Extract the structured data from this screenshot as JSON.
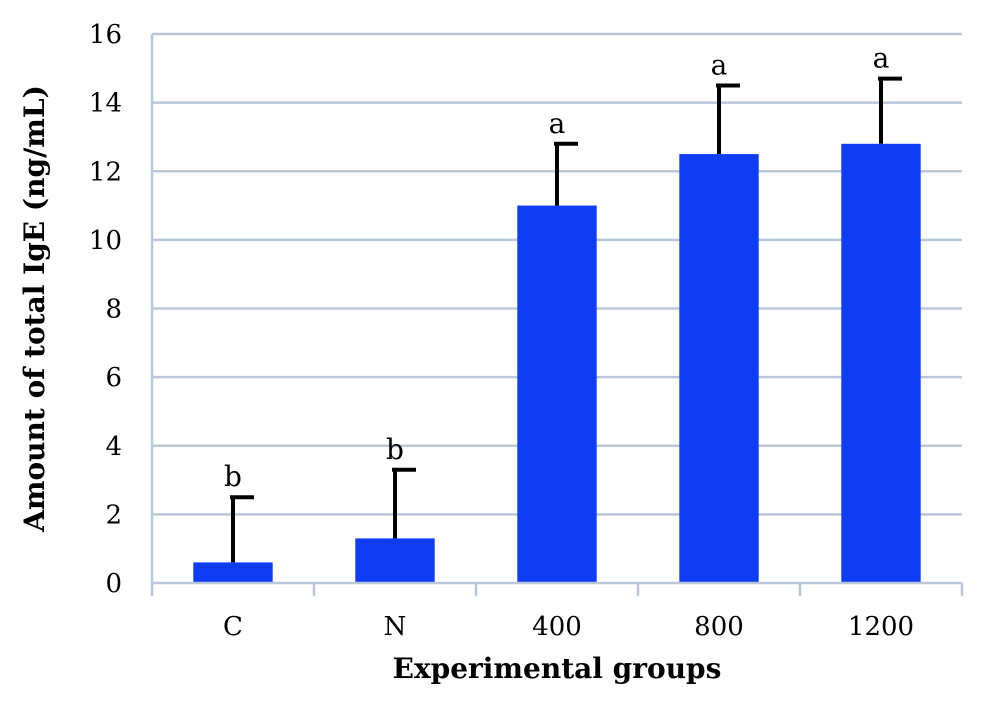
{
  "chart_data": {
    "type": "bar",
    "categories": [
      "C",
      "N",
      "400",
      "800",
      "1200"
    ],
    "values": [
      0.6,
      1.3,
      11.0,
      12.5,
      12.8
    ],
    "error_upper": [
      2.5,
      3.3,
      12.8,
      14.5,
      14.7
    ],
    "significance": [
      "b",
      "b",
      "a",
      "a",
      "a"
    ],
    "xlabel": "Experimental groups",
    "ylabel": "Amount of total IgE (ng/mL)",
    "ylim": [
      0,
      16
    ],
    "yticks": [
      0,
      2,
      4,
      6,
      8,
      10,
      12,
      14,
      16
    ],
    "grid": true,
    "bar_color": "#0f3cf5",
    "grid_color": "#b8c8d8"
  }
}
